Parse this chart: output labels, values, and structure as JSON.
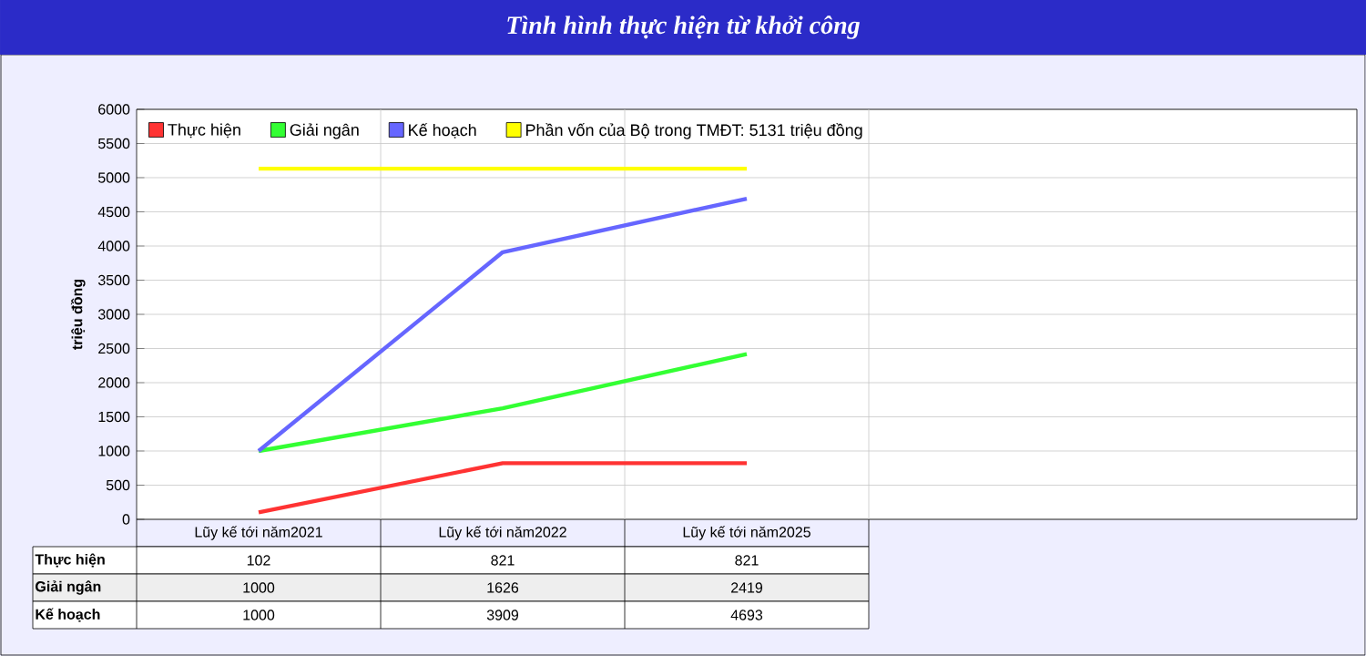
{
  "chart_data": {
    "type": "line",
    "title": "Tình hình thực hiện từ khởi công",
    "ylabel": "triệu đồng",
    "categories": [
      "Lũy kế tới năm2021",
      "Lũy kế tới năm2022",
      "Lũy kế tới năm2025",
      null,
      null
    ],
    "ylim": [
      0,
      6000
    ],
    "yticks": [
      0,
      500,
      1000,
      1500,
      2000,
      2500,
      3000,
      3500,
      4000,
      4500,
      5000,
      5500,
      6000
    ],
    "grid": true,
    "legend": "top",
    "series": [
      {
        "name": "Thực hiện",
        "color": "#ff3333",
        "values": [
          102,
          821,
          821,
          null,
          null
        ],
        "value_labels": [
          "102",
          "821",
          "821",
          null,
          null
        ]
      },
      {
        "name": "Giải ngân",
        "color": "#33ff33",
        "values": [
          1000,
          1626,
          2419,
          null,
          null
        ],
        "value_labels": [
          "1000",
          "1626",
          "2419",
          null,
          null
        ]
      },
      {
        "name": "Kế hoạch",
        "color": "#6666ff",
        "values": [
          1000,
          3909,
          4693,
          null,
          null
        ],
        "value_labels": [
          "1000",
          "3909",
          "4693",
          null,
          null
        ]
      },
      {
        "name": "Phần vốn của Bộ trong TMĐT: 5131 triệu đồng",
        "color": "#ffff00",
        "values": [
          5131,
          5131,
          5131,
          null,
          null
        ]
      }
    ]
  }
}
